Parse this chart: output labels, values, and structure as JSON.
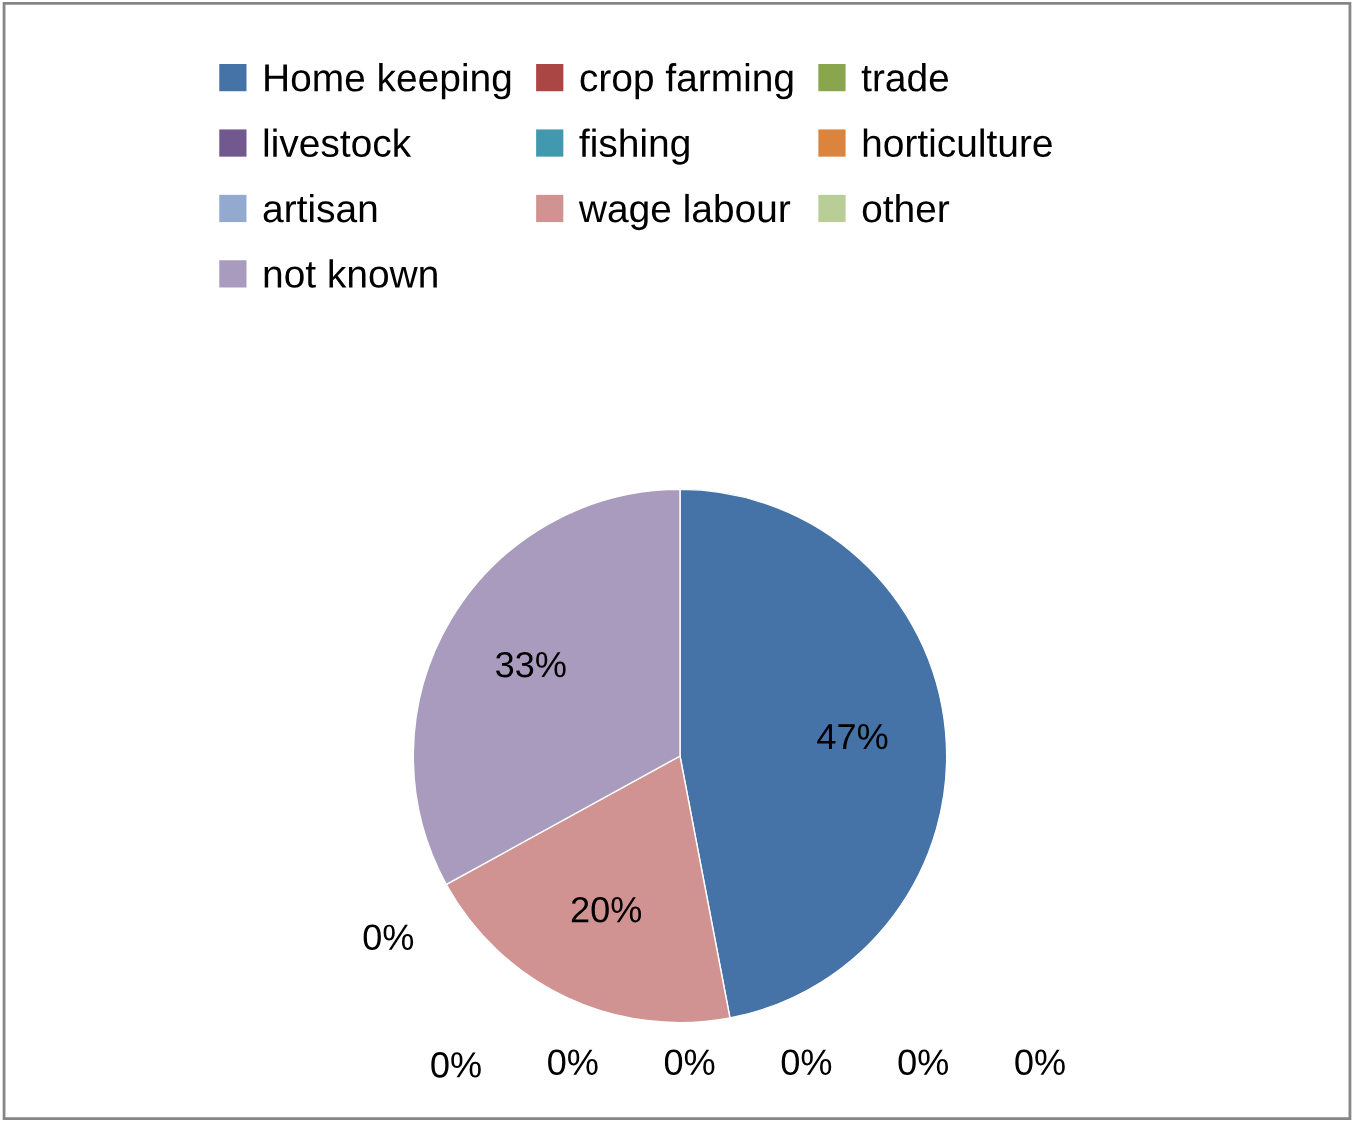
{
  "chart_data": {
    "type": "pie",
    "categories": [
      "Home keeping",
      "crop farming",
      "trade",
      "livestock",
      "fishing",
      "horticulture",
      "artisan",
      "wage labour",
      "other",
      "not known"
    ],
    "values": [
      47,
      0,
      0,
      0,
      0,
      0,
      0,
      20,
      0,
      33
    ],
    "value_labels": [
      "47%",
      "0%",
      "0%",
      "0%",
      "0%",
      "0%",
      "0%",
      "20%",
      "0%",
      "33%"
    ],
    "colors": [
      "#4572a7",
      "#aa4643",
      "#89a54e",
      "#71588f",
      "#4198af",
      "#db843d",
      "#93a9cf",
      "#d19392",
      "#b9cd96",
      "#a99bbd"
    ],
    "legend": "top"
  }
}
